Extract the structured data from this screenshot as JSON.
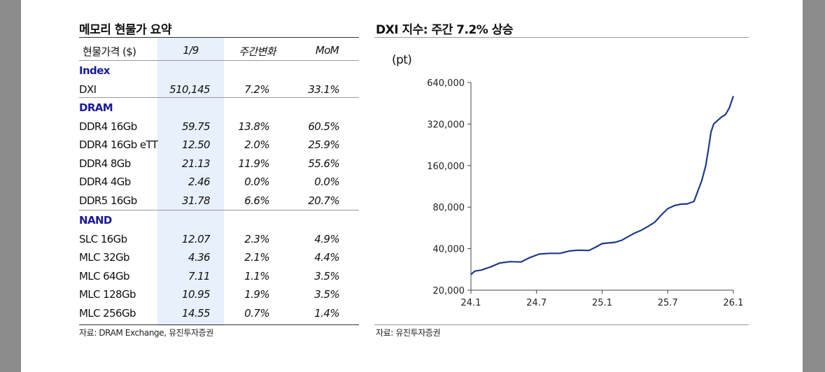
{
  "table": {
    "title": "메모리 현물가 요약",
    "headers": [
      "현물가격 ($)",
      "1/9",
      "주간변화",
      "MoM"
    ],
    "groups": [
      {
        "name": "Index",
        "rows": [
          {
            "item": "DXI",
            "price": "510,145",
            "wow": "7.2%",
            "mom": "33.1%"
          }
        ]
      },
      {
        "name": "DRAM",
        "rows": [
          {
            "item": "DDR4 16Gb",
            "price": "59.75",
            "wow": "13.8%",
            "mom": "60.5%"
          },
          {
            "item": "DDR4 16Gb eTT",
            "price": "12.50",
            "wow": "2.0%",
            "mom": "25.9%"
          },
          {
            "item": "DDR4 8Gb",
            "price": "21.13",
            "wow": "11.9%",
            "mom": "55.6%"
          },
          {
            "item": "DDR4 4Gb",
            "price": "2.46",
            "wow": "0.0%",
            "mom": "0.0%"
          },
          {
            "item": "DDR5 16Gb",
            "price": "31.78",
            "wow": "6.6%",
            "mom": "20.7%"
          }
        ]
      },
      {
        "name": "NAND",
        "rows": [
          {
            "item": "SLC 16Gb",
            "price": "12.07",
            "wow": "2.3%",
            "mom": "4.9%"
          },
          {
            "item": "MLC 32Gb",
            "price": "4.36",
            "wow": "2.1%",
            "mom": "4.4%"
          },
          {
            "item": "MLC 64Gb",
            "price": "7.11",
            "wow": "1.1%",
            "mom": "3.5%"
          },
          {
            "item": "MLC 128Gb",
            "price": "10.95",
            "wow": "1.9%",
            "mom": "3.5%"
          },
          {
            "item": "MLC 256Gb",
            "price": "14.55",
            "wow": "0.7%",
            "mom": "1.4%"
          }
        ]
      }
    ],
    "source": "자료: DRAM Exchange, 유진투자증권"
  },
  "chart_data": {
    "type": "line",
    "title": "DXI 지수: 주간 7.2% 상승",
    "ylabel": "(pt)",
    "xlabel": "",
    "y_scale": "log2",
    "ylim": [
      20000,
      640000
    ],
    "y_ticks": [
      20000,
      40000,
      80000,
      160000,
      320000,
      640000
    ],
    "y_tick_labels": [
      "20,000",
      "40,000",
      "80,000",
      "160,000",
      "320,000",
      "640,000"
    ],
    "x_ticks": [
      2024.0,
      2024.5,
      2025.0,
      2025.5,
      2026.0
    ],
    "x_tick_labels": [
      "24.1",
      "24.7",
      "25.1",
      "25.7",
      "26.1"
    ],
    "xlim": [
      2024.0,
      2026.0
    ],
    "series": [
      {
        "color": "#1f3a8a",
        "points": [
          [
            2024.0,
            26000
          ],
          [
            2024.03,
            27500
          ],
          [
            2024.08,
            28000
          ],
          [
            2024.15,
            29500
          ],
          [
            2024.22,
            31500
          ],
          [
            2024.3,
            32200
          ],
          [
            2024.38,
            32000
          ],
          [
            2024.45,
            34500
          ],
          [
            2024.52,
            36500
          ],
          [
            2024.6,
            37000
          ],
          [
            2024.68,
            37000
          ],
          [
            2024.75,
            38500
          ],
          [
            2024.82,
            39000
          ],
          [
            2024.9,
            38800
          ],
          [
            2024.95,
            41000
          ],
          [
            2025.0,
            43500
          ],
          [
            2025.05,
            44000
          ],
          [
            2025.1,
            44500
          ],
          [
            2025.15,
            46000
          ],
          [
            2025.2,
            49000
          ],
          [
            2025.25,
            52000
          ],
          [
            2025.3,
            54500
          ],
          [
            2025.35,
            58000
          ],
          [
            2025.4,
            62000
          ],
          [
            2025.45,
            70000
          ],
          [
            2025.5,
            78000
          ],
          [
            2025.55,
            82000
          ],
          [
            2025.6,
            84000
          ],
          [
            2025.65,
            84500
          ],
          [
            2025.7,
            88000
          ],
          [
            2025.73,
            105000
          ],
          [
            2025.76,
            125000
          ],
          [
            2025.79,
            160000
          ],
          [
            2025.81,
            210000
          ],
          [
            2025.83,
            280000
          ],
          [
            2025.85,
            320000
          ],
          [
            2025.88,
            340000
          ],
          [
            2025.91,
            360000
          ],
          [
            2025.94,
            375000
          ],
          [
            2025.97,
            420000
          ],
          [
            2026.0,
            510145
          ]
        ]
      }
    ],
    "source": "자료: 유진투자증권"
  }
}
